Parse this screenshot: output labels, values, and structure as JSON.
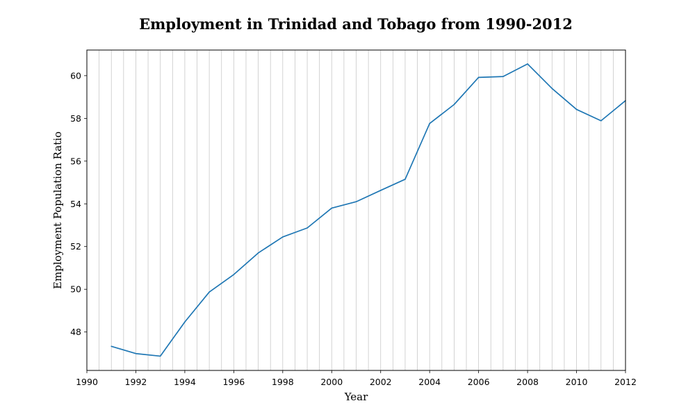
{
  "chart_data": {
    "type": "line",
    "title": "Employment in Trinidad and Tobago from 1990-2012",
    "xlabel": "Year",
    "ylabel": "Employment Population Ratio",
    "xlim": [
      1990,
      2012
    ],
    "ylim": [
      46.2,
      61.2
    ],
    "x_ticks": [
      "1990",
      "1992",
      "1994",
      "1996",
      "1998",
      "2000",
      "2002",
      "2004",
      "2006",
      "2008",
      "2010",
      "2012"
    ],
    "y_ticks": [
      "48",
      "50",
      "52",
      "54",
      "56",
      "58",
      "60"
    ],
    "grid": "vertical minor gridlines (every 0.5 year)",
    "series": [
      {
        "color": "#1f77b4",
        "x": [
          1991,
          1992,
          1993,
          1994,
          1995,
          1996,
          1997,
          1998,
          1999,
          2000,
          2001,
          2002,
          2003,
          2004,
          2005,
          2006,
          2007,
          2008,
          2009,
          2010,
          2011,
          2012
        ],
        "y": [
          47.33,
          46.99,
          46.87,
          48.47,
          49.87,
          50.69,
          51.7,
          52.45,
          52.87,
          53.8,
          54.1,
          54.63,
          55.15,
          57.76,
          58.65,
          59.92,
          59.96,
          60.55,
          59.4,
          58.42,
          57.89,
          58.83
        ]
      }
    ]
  }
}
